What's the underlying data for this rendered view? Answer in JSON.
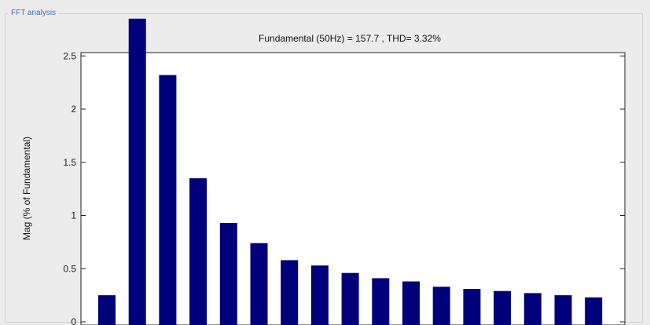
{
  "panel": {
    "title": "FFT analysis"
  },
  "chart_data": {
    "type": "bar",
    "title": "Fundamental (50Hz) = 157.7 , THD= 3.32%",
    "xlabel": "",
    "ylabel": "Mag (% of Fundamental)",
    "ylim": [
      0,
      2.6
    ],
    "yticks": [
      "0",
      "0.5",
      "1",
      "1.5",
      "2",
      "2.5"
    ],
    "grid": false,
    "bar_color": "#00007a",
    "values": [
      0.25,
      2.85,
      2.32,
      1.35,
      0.93,
      0.74,
      0.58,
      0.53,
      0.46,
      0.41,
      0.38,
      0.33,
      0.31,
      0.29,
      0.27,
      0.25,
      0.23
    ]
  }
}
